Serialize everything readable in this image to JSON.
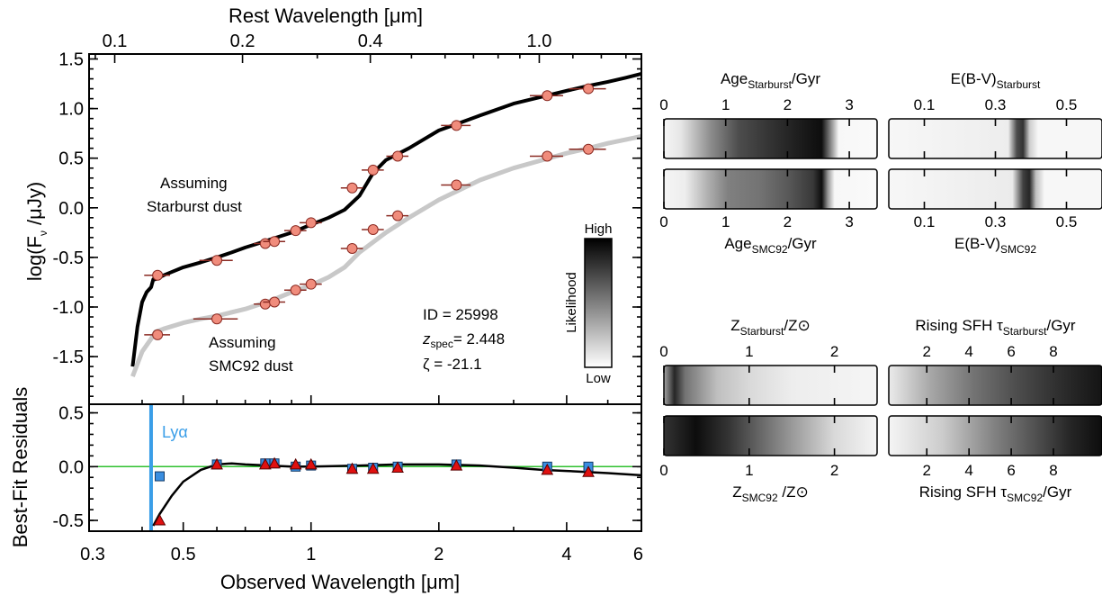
{
  "chart_data": [
    {
      "type": "line",
      "panel": "sed",
      "xlabel_top": "Rest Wavelength [μm]",
      "xticks_top": [
        "0.1",
        "0.2",
        "0.4",
        "1.0"
      ],
      "xticks_top_values": [
        0.1,
        0.2,
        0.4,
        1.0
      ],
      "ylabel": "log(F_ν /μJy)",
      "ylabel_parts": {
        "pre": "log(F",
        "sub": "ν",
        "post": " /μJy)"
      },
      "yticks": [
        "1.5",
        "1.0",
        "0.5",
        "0.0",
        "-0.5",
        "-1.0",
        "-1.5"
      ],
      "yticks_values": [
        1.5,
        1.0,
        0.5,
        0.0,
        -0.5,
        -1.0,
        -1.5
      ],
      "xscale": "log",
      "xlim": [
        0.3,
        6
      ],
      "ylim": [
        -1.98,
        1.55
      ],
      "series": [
        {
          "name": "Assuming Starburst dust",
          "color": "#000000",
          "x": [
            0.38,
            0.39,
            0.4,
            0.41,
            0.42,
            0.425,
            0.43,
            0.45,
            0.5,
            0.55,
            0.6,
            0.65,
            0.7,
            0.75,
            0.8,
            0.9,
            1.0,
            1.1,
            1.2,
            1.3,
            1.4,
            1.5,
            1.7,
            2.0,
            2.5,
            3.0,
            3.5,
            4.0,
            4.5,
            5.0,
            5.5,
            6.0
          ],
          "y": [
            -1.6,
            -1.2,
            -0.95,
            -0.85,
            -0.8,
            -0.72,
            -0.72,
            -0.68,
            -0.6,
            -0.55,
            -0.5,
            -0.45,
            -0.4,
            -0.36,
            -0.32,
            -0.25,
            -0.17,
            -0.1,
            -0.02,
            0.12,
            0.35,
            0.48,
            0.6,
            0.78,
            0.93,
            1.05,
            1.12,
            1.18,
            1.23,
            1.27,
            1.31,
            1.35
          ]
        },
        {
          "name": "Assuming SMC92 dust",
          "color": "#c8c8c8",
          "x": [
            0.38,
            0.4,
            0.42,
            0.43,
            0.45,
            0.5,
            0.55,
            0.6,
            0.7,
            0.8,
            0.9,
            1.0,
            1.1,
            1.2,
            1.3,
            1.5,
            1.7,
            2.0,
            2.5,
            3.0,
            3.5,
            4.0,
            4.5,
            5.0,
            6.0
          ],
          "y": [
            -1.7,
            -1.45,
            -1.32,
            -1.25,
            -1.22,
            -1.16,
            -1.12,
            -1.09,
            -1.02,
            -0.94,
            -0.85,
            -0.78,
            -0.7,
            -0.6,
            -0.45,
            -0.25,
            -0.1,
            0.08,
            0.28,
            0.4,
            0.48,
            0.55,
            0.6,
            0.65,
            0.72
          ]
        }
      ],
      "photometry_starburst": {
        "x": [
          0.435,
          0.6,
          0.78,
          0.82,
          0.92,
          1.0,
          1.25,
          1.4,
          1.6,
          2.2,
          3.6,
          4.5
        ],
        "y": [
          -0.68,
          -0.53,
          -0.36,
          -0.34,
          -0.23,
          -0.15,
          0.2,
          0.38,
          0.52,
          0.83,
          1.13,
          1.2
        ],
        "xerr_frac": [
          0.07,
          0.09,
          0.06,
          0.06,
          0.06,
          0.06,
          0.06,
          0.06,
          0.06,
          0.08,
          0.09,
          0.1
        ]
      },
      "photometry_smc92": {
        "x": [
          0.435,
          0.6,
          0.78,
          0.82,
          0.92,
          1.0,
          1.25,
          1.4,
          1.6,
          2.2,
          3.6,
          4.5
        ],
        "y": [
          -1.28,
          -1.12,
          -0.97,
          -0.95,
          -0.83,
          -0.77,
          -0.41,
          -0.22,
          -0.08,
          0.23,
          0.52,
          0.59
        ],
        "xerr_frac": [
          0.07,
          0.12,
          0.06,
          0.06,
          0.06,
          0.06,
          0.06,
          0.06,
          0.06,
          0.08,
          0.09,
          0.1
        ]
      },
      "marker_color": "#f08c7c",
      "annotations": {
        "starburst_label": [
          "Assuming",
          "Starburst dust"
        ],
        "smc_label": [
          "Assuming",
          "SMC92 dust"
        ],
        "id_line": "ID = 25998",
        "zspec": {
          "sym": "z",
          "sub": "spec",
          "val": "= 2.448"
        },
        "zeta_line": "ζ = -21.1"
      },
      "colorbar": {
        "high": "High",
        "low": "Low",
        "label": "Likelihood"
      }
    },
    {
      "type": "line",
      "panel": "residuals",
      "ylabel": "Best-Fit Residuals",
      "xlabel": "Observed Wavelength [μm]",
      "xticks": [
        "0.3",
        "0.5",
        "1",
        "2",
        "4",
        "6"
      ],
      "xticks_values": [
        0.3,
        0.5,
        1,
        2,
        4,
        6
      ],
      "yticks": [
        "0.5",
        "0.0",
        "-0.5"
      ],
      "yticks_values": [
        0.5,
        0.0,
        -0.5
      ],
      "xscale": "log",
      "xlim": [
        0.3,
        6
      ],
      "ylim": [
        -0.6,
        0.58
      ],
      "lya_label": "Lyα",
      "lya_x": 0.42,
      "lya_color": "#3a9ee8",
      "zero_line_color": "#30c030",
      "model_curve": {
        "x": [
          0.425,
          0.44,
          0.47,
          0.5,
          0.55,
          0.6,
          0.65,
          0.7,
          0.8,
          0.9,
          1.0,
          1.3,
          1.6,
          2.0,
          2.5,
          3.0,
          3.5,
          4.0,
          5.0,
          6.0
        ],
        "y": [
          -0.55,
          -0.44,
          -0.27,
          -0.14,
          -0.03,
          0.02,
          0.03,
          0.02,
          0.01,
          0.0,
          0.0,
          0.01,
          0.02,
          0.02,
          0.01,
          -0.01,
          -0.03,
          -0.04,
          -0.06,
          -0.08
        ]
      },
      "squares": {
        "color": "#3a8ee0",
        "x": [
          0.44,
          0.6,
          0.78,
          0.82,
          0.92,
          1.0,
          1.25,
          1.4,
          1.6,
          2.2,
          3.6,
          4.5
        ],
        "y": [
          -0.09,
          0.02,
          0.03,
          0.03,
          0.0,
          0.01,
          -0.02,
          -0.01,
          0.0,
          0.02,
          0.0,
          0.0
        ]
      },
      "triangles": {
        "color": "#e01010",
        "x": [
          0.44,
          0.6,
          0.78,
          0.82,
          0.92,
          1.0,
          1.25,
          1.4,
          1.6,
          2.2,
          3.6,
          4.5
        ],
        "y": [
          -0.5,
          0.02,
          0.02,
          0.03,
          0.02,
          0.02,
          -0.02,
          -0.02,
          -0.01,
          0.01,
          -0.03,
          -0.05
        ]
      }
    },
    {
      "type": "heatmap",
      "panel": "age",
      "title_top": {
        "main": "Age",
        "sub": "Starburst",
        "post": "/Gyr"
      },
      "title_bottom": {
        "main": "Age",
        "sub": "SMC92",
        "post": "/Gyr"
      },
      "xlim": [
        0,
        3.45
      ],
      "ticks": [
        "0",
        "1",
        "2",
        "3"
      ],
      "ticks_values": [
        0,
        1,
        2,
        3
      ],
      "top_stops": [
        [
          0,
          0.96
        ],
        [
          0.08,
          0.9
        ],
        [
          0.22,
          0.55
        ],
        [
          0.35,
          0.3
        ],
        [
          0.5,
          0.2
        ],
        [
          0.62,
          0.12
        ],
        [
          0.74,
          0.05
        ],
        [
          0.78,
          0.5
        ],
        [
          0.82,
          0.97
        ],
        [
          1,
          0.98
        ]
      ],
      "bottom_stops": [
        [
          0,
          0.96
        ],
        [
          0.1,
          0.93
        ],
        [
          0.2,
          0.7
        ],
        [
          0.3,
          0.5
        ],
        [
          0.45,
          0.45
        ],
        [
          0.58,
          0.35
        ],
        [
          0.7,
          0.22
        ],
        [
          0.74,
          0.05
        ],
        [
          0.77,
          0.6
        ],
        [
          0.8,
          0.97
        ],
        [
          1,
          0.98
        ]
      ]
    },
    {
      "type": "heatmap",
      "panel": "ebv",
      "title_top": {
        "main": "E(B-V)",
        "sub": "Starburst",
        "post": ""
      },
      "title_bottom": {
        "main": "E(B-V)",
        "sub": "SMC92",
        "post": ""
      },
      "xlim": [
        0.0,
        0.6
      ],
      "ticks": [
        "0.1",
        "0.3",
        "0.5"
      ],
      "ticks_values": [
        0.1,
        0.3,
        0.5
      ],
      "top_stops": [
        [
          0,
          0.97
        ],
        [
          0.56,
          0.93
        ],
        [
          0.6,
          0.3
        ],
        [
          0.63,
          0.2
        ],
        [
          0.66,
          0.8
        ],
        [
          0.7,
          0.97
        ],
        [
          1,
          0.97
        ]
      ],
      "bottom_stops": [
        [
          0,
          0.97
        ],
        [
          0.58,
          0.92
        ],
        [
          0.63,
          0.25
        ],
        [
          0.66,
          0.15
        ],
        [
          0.69,
          0.75
        ],
        [
          0.73,
          0.97
        ],
        [
          1,
          0.97
        ]
      ]
    },
    {
      "type": "heatmap",
      "panel": "metallicity",
      "title_top": {
        "main": "Z",
        "sub": "Starburst",
        "post": "/Z⊙"
      },
      "title_bottom": {
        "main": "Z",
        "sub": "SMC92",
        "post": " /Z⊙"
      },
      "xlim": [
        0,
        2.5
      ],
      "ticks": [
        "0",
        "1",
        "2"
      ],
      "ticks_values": [
        0,
        1,
        2
      ],
      "top_stops": [
        [
          0,
          0.65
        ],
        [
          0.05,
          0.15
        ],
        [
          0.1,
          0.45
        ],
        [
          0.25,
          0.75
        ],
        [
          0.4,
          0.85
        ],
        [
          0.6,
          0.93
        ],
        [
          1,
          0.96
        ]
      ],
      "bottom_stops": [
        [
          0,
          0.2
        ],
        [
          0.15,
          0.05
        ],
        [
          0.3,
          0.2
        ],
        [
          0.45,
          0.4
        ],
        [
          0.6,
          0.6
        ],
        [
          0.8,
          0.85
        ],
        [
          1,
          0.96
        ]
      ]
    },
    {
      "type": "heatmap",
      "panel": "tau",
      "title_top": {
        "main": "Rising SFH τ",
        "sub": "Starburst",
        "post": "/Gyr"
      },
      "title_bottom": {
        "main": "Rising SFH τ",
        "sub": "SMC92",
        "post": "/Gyr"
      },
      "xlim": [
        0.2,
        10.3
      ],
      "ticks": [
        "2",
        "4",
        "6",
        "8"
      ],
      "ticks_values": [
        2,
        4,
        6,
        8
      ],
      "top_stops": [
        [
          0,
          0.92
        ],
        [
          0.2,
          0.65
        ],
        [
          0.4,
          0.45
        ],
        [
          0.6,
          0.3
        ],
        [
          0.8,
          0.18
        ],
        [
          1,
          0.08
        ]
      ],
      "bottom_stops": [
        [
          0,
          0.96
        ],
        [
          0.25,
          0.8
        ],
        [
          0.5,
          0.5
        ],
        [
          0.7,
          0.3
        ],
        [
          0.85,
          0.15
        ],
        [
          1,
          0.05
        ]
      ]
    }
  ]
}
